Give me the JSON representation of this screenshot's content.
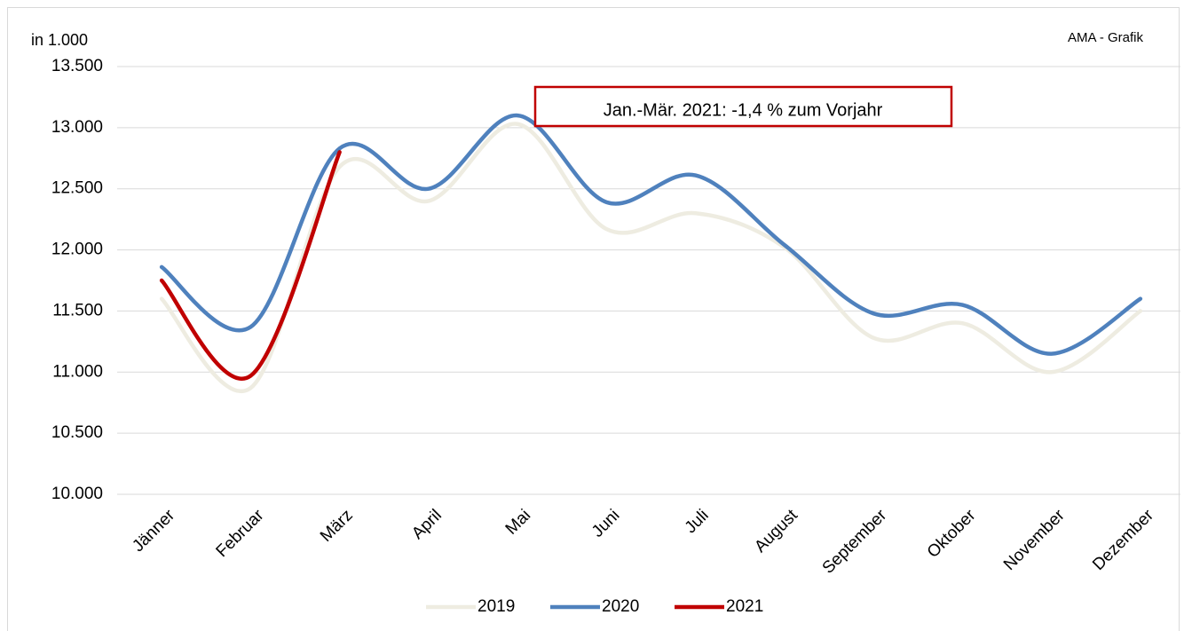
{
  "chart_data": {
    "type": "line",
    "ylabel": "in 1.000",
    "source": "AMA - Grafik",
    "annotation": "Jan.-Mär. 2021: -1,4 % zum Vorjahr",
    "categories": [
      "Jänner",
      "Februar",
      "März",
      "April",
      "Mai",
      "Juni",
      "Juli",
      "August",
      "September",
      "Oktober",
      "November",
      "Dezember"
    ],
    "series": [
      {
        "name": "2019",
        "color": "#eeece1",
        "values": [
          11600,
          10870,
          12680,
          12400,
          13030,
          12170,
          12300,
          12020,
          11280,
          11400,
          11000,
          11500
        ]
      },
      {
        "name": "2020",
        "color": "#4f81bd",
        "values": [
          11860,
          11370,
          12830,
          12500,
          13100,
          12390,
          12610,
          12040,
          11480,
          11550,
          11150,
          11600
        ]
      },
      {
        "name": "2021",
        "color": "#c00000",
        "values": [
          11750,
          10970,
          12800,
          null,
          null,
          null,
          null,
          null,
          null,
          null,
          null,
          null
        ]
      }
    ],
    "ylim": [
      10000,
      13500
    ],
    "yticks": [
      {
        "value": 10000,
        "label": "10.000"
      },
      {
        "value": 10500,
        "label": "10.500"
      },
      {
        "value": 11000,
        "label": "11.000"
      },
      {
        "value": 11500,
        "label": "11.500"
      },
      {
        "value": 12000,
        "label": "12.000"
      },
      {
        "value": 12500,
        "label": "12.500"
      },
      {
        "value": 13000,
        "label": "13.000"
      },
      {
        "value": 13500,
        "label": "13.500"
      }
    ],
    "grid": true,
    "smooth": true,
    "legend": "bottom"
  }
}
